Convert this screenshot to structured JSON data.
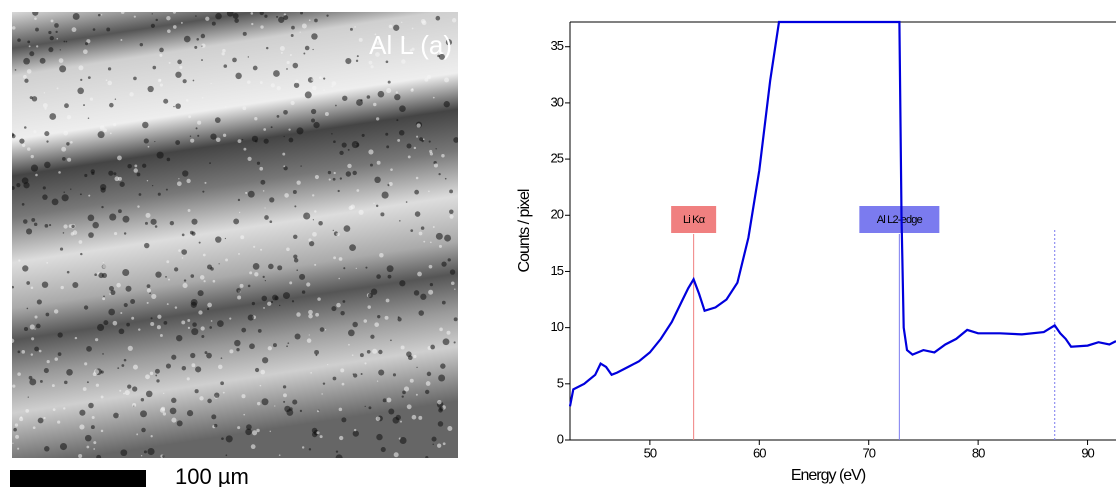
{
  "image": {
    "label": "Al L (a)",
    "scale_bar": "100 µm"
  },
  "chart_data": {
    "type": "line",
    "x_label": "Energy (eV)",
    "y_label": "Counts / pixel",
    "xlim": [
      42.7,
      92.6
    ],
    "ylim": [
      0,
      37.2
    ],
    "xticks": [
      50,
      60,
      70,
      80,
      90
    ],
    "yticks": [
      0,
      5,
      10,
      15,
      20,
      25,
      30,
      35
    ],
    "series": [
      {
        "color": "#0000dd",
        "x": [
          42.7,
          43,
          44,
          45,
          45.5,
          46,
          46.5,
          47,
          48,
          49,
          50,
          51,
          52,
          53,
          53.5,
          54,
          54.5,
          55,
          56,
          57,
          58,
          59,
          60,
          61,
          61.8,
          67,
          72.8,
          73,
          73.2,
          73.5,
          74,
          75,
          76,
          77,
          78,
          79,
          80,
          82,
          84,
          86,
          87,
          87.5,
          88,
          88.5,
          90,
          91,
          92,
          92.6
        ],
        "values": [
          3,
          4.5,
          5,
          5.8,
          6.8,
          6.5,
          5.8,
          6,
          6.5,
          7,
          7.8,
          9,
          10.5,
          12.5,
          13.5,
          14.3,
          13,
          11.5,
          11.8,
          12.5,
          14,
          18,
          24,
          32,
          37.2,
          37.2,
          37.2,
          20,
          10,
          8,
          7.6,
          8,
          7.8,
          8.5,
          9,
          9.8,
          9.5,
          9.5,
          9.4,
          9.6,
          10.2,
          9.5,
          9,
          8.3,
          8.4,
          8.7,
          8.5,
          8.8
        ]
      }
    ],
    "markers": [
      {
        "x": 54,
        "label": "Li Kα",
        "color": "#f08080"
      },
      {
        "x": 72.8,
        "label": "Al L2-edge",
        "color": "#7b7bef"
      },
      {
        "x": 87,
        "color": "#7b7bef",
        "dashed": true
      }
    ]
  }
}
